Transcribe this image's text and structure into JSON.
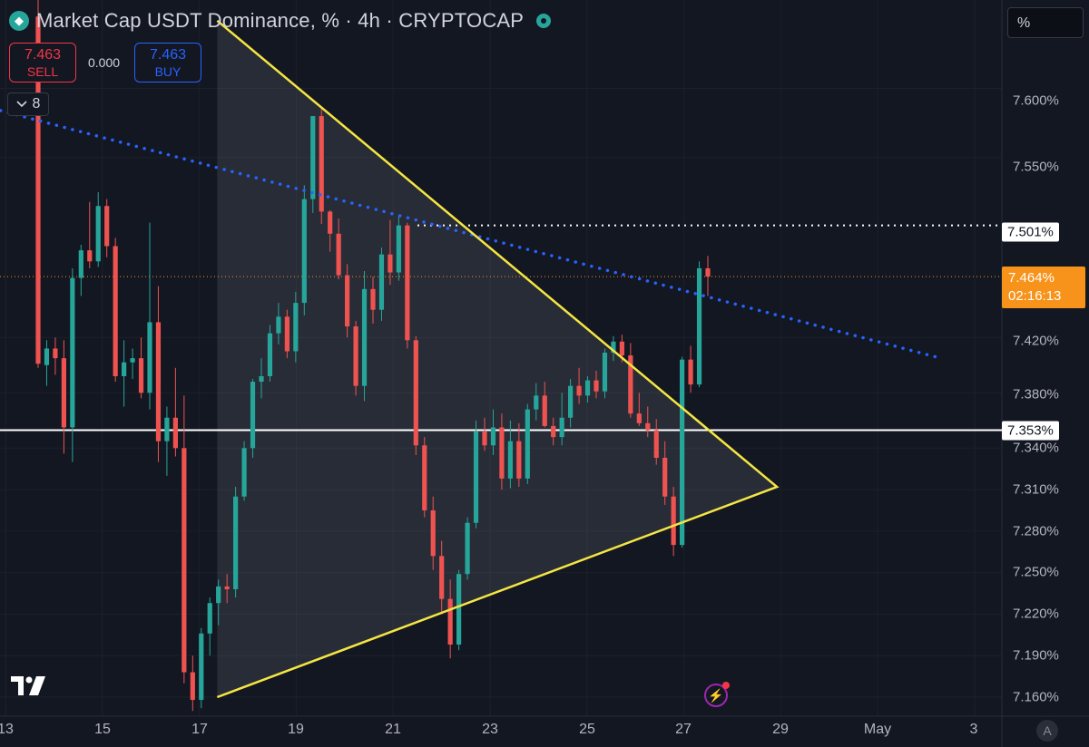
{
  "header": {
    "title": "Market Cap USDT Dominance, % · 4h · CRYPTOCAP",
    "logo_icon": "tether-diamond-icon",
    "status_icon": "market-status-dot-icon"
  },
  "trade": {
    "sell_value": "7.463",
    "sell_label": "SELL",
    "spread": "0.000",
    "buy_value": "7.463",
    "buy_label": "BUY"
  },
  "indicators_toggle": {
    "count": "8",
    "icon": "chevron-down-icon"
  },
  "price_axis": {
    "unit_label": "%",
    "ticks": [
      "7.600%",
      "7.550%",
      "7.420%",
      "7.380%",
      "7.340%",
      "7.310%",
      "7.280%",
      "7.250%",
      "7.220%",
      "7.190%",
      "7.160%"
    ]
  },
  "badges": {
    "resistance": "7.501%",
    "last_price": "7.464%",
    "countdown": "02:16:13",
    "support": "7.353%"
  },
  "time_axis": {
    "ticks": [
      "13",
      "15",
      "17",
      "19",
      "21",
      "23",
      "25",
      "27",
      "29",
      "May",
      "3"
    ]
  },
  "footer": {
    "brand_icon": "tradingview-logo-icon",
    "alert_icon": "lightning-icon",
    "auto_scale": "A"
  },
  "colors": {
    "up": "#26a69a",
    "down": "#ef5350",
    "triangle": "#f5e642",
    "trendline": "#2962ff",
    "level": "#ffffff",
    "last_price": "#f7931a",
    "background": "#131722"
  },
  "chart_data": {
    "type": "candlestick",
    "interval": "4h",
    "price_axis_unit": "%",
    "candles": [
      [
        7.652,
        7.674,
        7.398,
        7.401
      ],
      [
        7.4,
        7.418,
        7.385,
        7.412
      ],
      [
        7.412,
        7.42,
        7.393,
        7.405
      ],
      [
        7.405,
        7.418,
        7.336,
        7.355
      ],
      [
        7.355,
        7.47,
        7.33,
        7.463
      ],
      [
        7.463,
        7.487,
        7.45,
        7.483
      ],
      [
        7.483,
        7.518,
        7.47,
        7.475
      ],
      [
        7.475,
        7.525,
        7.471,
        7.515
      ],
      [
        7.515,
        7.52,
        7.478,
        7.486
      ],
      [
        7.486,
        7.492,
        7.388,
        7.392
      ],
      [
        7.392,
        7.418,
        7.37,
        7.402
      ],
      [
        7.402,
        7.412,
        7.39,
        7.405
      ],
      [
        7.405,
        7.42,
        7.376,
        7.38
      ],
      [
        7.38,
        7.503,
        7.368,
        7.431
      ],
      [
        7.431,
        7.457,
        7.33,
        7.345
      ],
      [
        7.345,
        7.37,
        7.32,
        7.362
      ],
      [
        7.362,
        7.398,
        7.334,
        7.34
      ],
      [
        7.34,
        7.378,
        7.17,
        7.178
      ],
      [
        7.178,
        7.19,
        7.15,
        7.158
      ],
      [
        7.158,
        7.21,
        7.152,
        7.206
      ],
      [
        7.206,
        7.232,
        7.19,
        7.228
      ],
      [
        7.228,
        7.245,
        7.212,
        7.24
      ],
      [
        7.24,
        7.249,
        7.228,
        7.238
      ],
      [
        7.238,
        7.312,
        7.232,
        7.305
      ],
      [
        7.305,
        7.345,
        7.302,
        7.34
      ],
      [
        7.34,
        7.39,
        7.333,
        7.388
      ],
      [
        7.388,
        7.405,
        7.376,
        7.392
      ],
      [
        7.392,
        7.429,
        7.388,
        7.423
      ],
      [
        7.423,
        7.445,
        7.415,
        7.435
      ],
      [
        7.435,
        7.44,
        7.405,
        7.41
      ],
      [
        7.41,
        7.453,
        7.402,
        7.445
      ],
      [
        7.445,
        7.53,
        7.436,
        7.52
      ],
      [
        7.52,
        7.58,
        7.51,
        7.58
      ],
      [
        7.58,
        7.585,
        7.502,
        7.511
      ],
      [
        7.511,
        7.512,
        7.482,
        7.495
      ],
      [
        7.495,
        7.506,
        7.462,
        7.465
      ],
      [
        7.465,
        7.473,
        7.42,
        7.428
      ],
      [
        7.428,
        7.432,
        7.378,
        7.385
      ],
      [
        7.385,
        7.468,
        7.374,
        7.455
      ],
      [
        7.455,
        7.464,
        7.43,
        7.44
      ],
      [
        7.44,
        7.485,
        7.432,
        7.48
      ],
      [
        7.48,
        7.505,
        7.458,
        7.467
      ],
      [
        7.467,
        7.508,
        7.461,
        7.501
      ],
      [
        7.501,
        7.503,
        7.412,
        7.418
      ],
      [
        7.418,
        7.421,
        7.335,
        7.342
      ],
      [
        7.342,
        7.348,
        7.29,
        7.295
      ],
      [
        7.295,
        7.305,
        7.252,
        7.262
      ],
      [
        7.262,
        7.273,
        7.22,
        7.231
      ],
      [
        7.231,
        7.245,
        7.188,
        7.198
      ],
      [
        7.198,
        7.252,
        7.194,
        7.249
      ],
      [
        7.249,
        7.29,
        7.245,
        7.286
      ],
      [
        7.286,
        7.36,
        7.282,
        7.352
      ],
      [
        7.352,
        7.362,
        7.338,
        7.342
      ],
      [
        7.342,
        7.368,
        7.335,
        7.355
      ],
      [
        7.355,
        7.365,
        7.31,
        7.318
      ],
      [
        7.318,
        7.36,
        7.311,
        7.345
      ],
      [
        7.345,
        7.358,
        7.312,
        7.318
      ],
      [
        7.318,
        7.372,
        7.314,
        7.368
      ],
      [
        7.368,
        7.387,
        7.36,
        7.378
      ],
      [
        7.378,
        7.388,
        7.355,
        7.356
      ],
      [
        7.356,
        7.362,
        7.342,
        7.348
      ],
      [
        7.348,
        7.38,
        7.342,
        7.362
      ],
      [
        7.362,
        7.39,
        7.355,
        7.385
      ],
      [
        7.385,
        7.398,
        7.372,
        7.378
      ],
      [
        7.378,
        7.392,
        7.373,
        7.389
      ],
      [
        7.389,
        7.396,
        7.376,
        7.381
      ],
      [
        7.381,
        7.412,
        7.376,
        7.409
      ],
      [
        7.409,
        7.421,
        7.403,
        7.417
      ],
      [
        7.417,
        7.422,
        7.402,
        7.407
      ],
      [
        7.407,
        7.416,
        7.362,
        7.365
      ],
      [
        7.365,
        7.38,
        7.356,
        7.358
      ],
      [
        7.358,
        7.37,
        7.348,
        7.353
      ],
      [
        7.353,
        7.361,
        7.328,
        7.333
      ],
      [
        7.333,
        7.345,
        7.299,
        7.305
      ],
      [
        7.305,
        7.312,
        7.262,
        7.27
      ],
      [
        7.27,
        7.406,
        7.268,
        7.404
      ],
      [
        7.404,
        7.414,
        7.38,
        7.386
      ],
      [
        7.386,
        7.475,
        7.384,
        7.47
      ],
      [
        7.47,
        7.479,
        7.45,
        7.464
      ]
    ],
    "last_price": 7.464,
    "horizontal_levels": [
      7.501,
      7.353
    ],
    "triangle": [
      [
        17.37,
        7.649
      ],
      [
        28.92,
        7.312
      ],
      [
        17.37,
        7.16
      ]
    ],
    "downtrend_line": [
      [
        12.9,
        7.584
      ],
      [
        32.3,
        7.405
      ]
    ],
    "x_ticks": [
      "13",
      "15",
      "17",
      "19",
      "21",
      "23",
      "25",
      "27",
      "29",
      "May",
      "3"
    ],
    "y_ticks": [
      "7.600%",
      "7.550%",
      "7.420%",
      "7.380%",
      "7.340%",
      "7.310%",
      "7.280%",
      "7.250%",
      "7.220%",
      "7.190%",
      "7.160%"
    ]
  }
}
